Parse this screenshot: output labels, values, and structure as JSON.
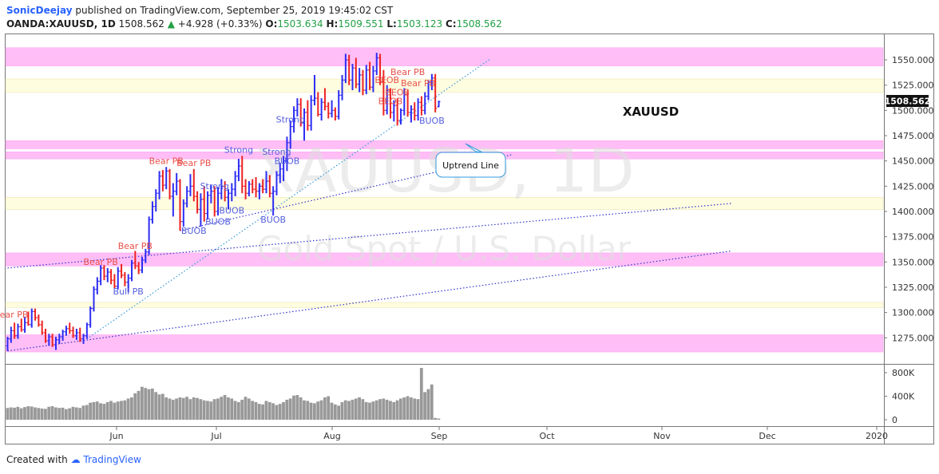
{
  "header": {
    "author": "SonicDeejay",
    "published": "published on TradingView.com, September 25, 2019 19:45:02 CST",
    "symbol": "OANDA:XAUUSD, 1D",
    "last": "1508.562",
    "change": "+4.928 (+0.33%)",
    "o_label": "O:",
    "o_value": "1503.634",
    "h_label": "H:",
    "h_value": "1509.551",
    "l_label": "L:",
    "l_value": "1503.123",
    "c_label": "C:",
    "c_value": "1508.562"
  },
  "footer": {
    "created_with": "Created with",
    "brand": "TradingView"
  },
  "watermark": {
    "line1": "XAUUSD, 1D",
    "line2": "Gold Spot / U.S. Dollar"
  },
  "symbol_label": "XAUUSD",
  "price_tag": "1508.562",
  "callout": "Uptrend Line",
  "colors": {
    "up": "#2d2df5",
    "down": "#ee2222",
    "zone_pink": "#ffb3f5",
    "zone_yellow": "#fffde0",
    "trend": "#3333cc",
    "trend_light": "#3399dd",
    "volume": "#999999"
  },
  "chart_data": {
    "type": "bar",
    "symbol": "OANDA:XAUUSD",
    "timeframe": "1D",
    "y_ticks": [
      "1550.000",
      "1525.000",
      "1500.000",
      "1475.000",
      "1450.000",
      "1425.000",
      "1400.000",
      "1375.000",
      "1350.000",
      "1325.000",
      "1300.000",
      "1275.000"
    ],
    "ylim": [
      1253,
      1570
    ],
    "x_ticks": [
      "Jun",
      "Jul",
      "Aug",
      "Sep",
      "Oct",
      "Nov",
      "Dec",
      "2020"
    ],
    "volume_ticks": [
      "800K",
      "400K",
      "0"
    ],
    "volume_max": 900000,
    "zones": [
      {
        "type": "resistance",
        "from": 1544,
        "to": 1562
      },
      {
        "type": "minor",
        "from": 1518,
        "to": 1531
      },
      {
        "type": "resistance",
        "from": 1462,
        "to": 1470
      },
      {
        "type": "resistance",
        "from": 1452,
        "to": 1459
      },
      {
        "type": "minor",
        "from": 1402,
        "to": 1414
      },
      {
        "type": "resistance",
        "from": 1346,
        "to": 1359
      },
      {
        "type": "minor",
        "from": 1305,
        "to": 1310
      },
      {
        "type": "resistance",
        "from": 1261,
        "to": 1278
      }
    ],
    "annotations": [
      {
        "text": "Bear PB",
        "kind": "bear",
        "bar": 1,
        "price": 1295
      },
      {
        "text": "Bear PB",
        "kind": "bear",
        "bar": 27,
        "price": 1347
      },
      {
        "text": "Bull PB",
        "kind": "bull",
        "bar": 35,
        "price": 1318
      },
      {
        "text": "Bear PB",
        "kind": "bear",
        "bar": 37,
        "price": 1363
      },
      {
        "text": "Bear PB",
        "kind": "bear",
        "bar": 46,
        "price": 1447
      },
      {
        "text": "Bear PB",
        "kind": "bear",
        "bar": 54,
        "price": 1445
      },
      {
        "text": "Strong",
        "kind": "bull",
        "bar": 60,
        "price": 1422
      },
      {
        "text": "BUOB",
        "kind": "bull",
        "bar": 54,
        "price": 1378
      },
      {
        "text": "BUOB",
        "kind": "bull",
        "bar": 61,
        "price": 1387
      },
      {
        "text": "BUOB",
        "kind": "bull",
        "bar": 65,
        "price": 1398
      },
      {
        "text": "Strong",
        "kind": "bull",
        "bar": 67,
        "price": 1458
      },
      {
        "text": "Strong",
        "kind": "bull",
        "bar": 78,
        "price": 1456
      },
      {
        "text": "BUOB",
        "kind": "bull",
        "bar": 81,
        "price": 1447
      },
      {
        "text": "BUOB",
        "kind": "bull",
        "bar": 77,
        "price": 1389
      },
      {
        "text": "Strong",
        "kind": "bull",
        "bar": 82,
        "price": 1488
      },
      {
        "text": "Bear PB",
        "kind": "bear",
        "bar": 116,
        "price": 1535
      },
      {
        "text": "BEOB",
        "kind": "bear",
        "bar": 110,
        "price": 1527
      },
      {
        "text": "Bear PB",
        "kind": "bear",
        "bar": 119,
        "price": 1524
      },
      {
        "text": "BEOB",
        "kind": "bear",
        "bar": 113,
        "price": 1515
      },
      {
        "text": "BEOB",
        "kind": "bear",
        "bar": 111,
        "price": 1506
      },
      {
        "text": "BUOB",
        "kind": "bull",
        "bar": 123,
        "price": 1487
      }
    ],
    "trend_lines": [
      {
        "name": "Uptrend Line",
        "style": "dotted-light",
        "from": [
          23,
          1274
        ],
        "to": [
          140,
          1551
        ]
      },
      {
        "name": "",
        "style": "dotted",
        "from": [
          50,
          1381
        ],
        "to": [
          146,
          1456
        ]
      },
      {
        "name": "",
        "style": "dotted",
        "from": [
          0,
          1344
        ],
        "to": [
          210,
          1408
        ]
      },
      {
        "name": "",
        "style": "dotted",
        "from": [
          0,
          1262
        ],
        "to": [
          210,
          1361
        ]
      }
    ],
    "bars": [
      [
        1267,
        1276,
        1262,
        1274
      ],
      [
        1274,
        1286,
        1270,
        1282
      ],
      [
        1282,
        1290,
        1274,
        1277
      ],
      [
        1277,
        1289,
        1274,
        1286
      ],
      [
        1286,
        1294,
        1281,
        1283
      ],
      [
        1283,
        1296,
        1280,
        1290
      ],
      [
        1290,
        1301,
        1287,
        1288
      ],
      [
        1288,
        1304,
        1285,
        1301
      ],
      [
        1301,
        1304,
        1292,
        1295
      ],
      [
        1295,
        1298,
        1286,
        1288
      ],
      [
        1288,
        1292,
        1278,
        1280
      ],
      [
        1280,
        1284,
        1270,
        1272
      ],
      [
        1272,
        1279,
        1267,
        1276
      ],
      [
        1276,
        1279,
        1266,
        1268
      ],
      [
        1268,
        1276,
        1263,
        1273
      ],
      [
        1273,
        1279,
        1269,
        1276
      ],
      [
        1276,
        1283,
        1272,
        1281
      ],
      [
        1281,
        1287,
        1277,
        1284
      ],
      [
        1284,
        1290,
        1279,
        1282
      ],
      [
        1282,
        1286,
        1275,
        1277
      ],
      [
        1277,
        1284,
        1273,
        1280
      ],
      [
        1280,
        1285,
        1271,
        1274
      ],
      [
        1274,
        1279,
        1269,
        1277
      ],
      [
        1277,
        1290,
        1274,
        1288
      ],
      [
        1288,
        1306,
        1285,
        1304
      ],
      [
        1304,
        1326,
        1301,
        1323
      ],
      [
        1323,
        1335,
        1318,
        1331
      ],
      [
        1331,
        1347,
        1327,
        1344
      ],
      [
        1344,
        1347,
        1332,
        1336
      ],
      [
        1336,
        1344,
        1330,
        1340
      ],
      [
        1340,
        1343,
        1328,
        1332
      ],
      [
        1332,
        1338,
        1324,
        1326
      ],
      [
        1326,
        1345,
        1323,
        1341
      ],
      [
        1341,
        1348,
        1334,
        1337
      ],
      [
        1337,
        1340,
        1326,
        1330
      ],
      [
        1330,
        1338,
        1320,
        1334
      ],
      [
        1334,
        1352,
        1331,
        1349
      ],
      [
        1349,
        1361,
        1343,
        1346
      ],
      [
        1346,
        1350,
        1338,
        1342
      ],
      [
        1342,
        1355,
        1339,
        1352
      ],
      [
        1352,
        1363,
        1349,
        1360
      ],
      [
        1360,
        1395,
        1357,
        1392
      ],
      [
        1392,
        1410,
        1388,
        1405
      ],
      [
        1405,
        1422,
        1400,
        1418
      ],
      [
        1418,
        1440,
        1412,
        1435
      ],
      [
        1435,
        1441,
        1420,
        1426
      ],
      [
        1426,
        1444,
        1422,
        1440
      ],
      [
        1440,
        1442,
        1412,
        1415
      ],
      [
        1415,
        1428,
        1395,
        1420
      ],
      [
        1420,
        1438,
        1416,
        1430
      ],
      [
        1430,
        1432,
        1381,
        1390
      ],
      [
        1390,
        1412,
        1385,
        1408
      ],
      [
        1408,
        1425,
        1404,
        1420
      ],
      [
        1420,
        1437,
        1415,
        1425
      ],
      [
        1425,
        1442,
        1410,
        1415
      ],
      [
        1415,
        1420,
        1398,
        1402
      ],
      [
        1402,
        1418,
        1385,
        1412
      ],
      [
        1412,
        1425,
        1390,
        1398
      ],
      [
        1398,
        1420,
        1392,
        1416
      ],
      [
        1416,
        1426,
        1408,
        1420
      ],
      [
        1420,
        1425,
        1395,
        1400
      ],
      [
        1400,
        1424,
        1396,
        1418
      ],
      [
        1418,
        1432,
        1412,
        1425
      ],
      [
        1425,
        1430,
        1410,
        1414
      ],
      [
        1414,
        1422,
        1402,
        1418
      ],
      [
        1418,
        1428,
        1410,
        1422
      ],
      [
        1422,
        1440,
        1415,
        1435
      ],
      [
        1435,
        1452,
        1430,
        1445
      ],
      [
        1445,
        1455,
        1418,
        1425
      ],
      [
        1425,
        1432,
        1412,
        1418
      ],
      [
        1418,
        1430,
        1415,
        1427
      ],
      [
        1427,
        1432,
        1418,
        1422
      ],
      [
        1422,
        1434,
        1414,
        1420
      ],
      [
        1420,
        1428,
        1412,
        1425
      ],
      [
        1425,
        1432,
        1418,
        1422
      ],
      [
        1422,
        1440,
        1418,
        1430
      ],
      [
        1430,
        1436,
        1414,
        1418
      ],
      [
        1418,
        1425,
        1396,
        1420
      ],
      [
        1420,
        1440,
        1416,
        1436
      ],
      [
        1436,
        1448,
        1428,
        1442
      ],
      [
        1442,
        1455,
        1430,
        1450
      ],
      [
        1450,
        1474,
        1440,
        1468
      ],
      [
        1468,
        1490,
        1462,
        1484
      ],
      [
        1484,
        1504,
        1478,
        1500
      ],
      [
        1500,
        1512,
        1494,
        1506
      ],
      [
        1506,
        1512,
        1484,
        1488
      ],
      [
        1488,
        1502,
        1470,
        1498
      ],
      [
        1498,
        1510,
        1480,
        1485
      ],
      [
        1485,
        1515,
        1480,
        1510
      ],
      [
        1510,
        1535,
        1505,
        1512
      ],
      [
        1512,
        1518,
        1494,
        1496
      ],
      [
        1496,
        1512,
        1490,
        1508
      ],
      [
        1508,
        1522,
        1500,
        1504
      ],
      [
        1504,
        1508,
        1492,
        1497
      ],
      [
        1497,
        1510,
        1493,
        1500
      ],
      [
        1500,
        1503,
        1490,
        1494
      ],
      [
        1494,
        1520,
        1491,
        1515
      ],
      [
        1515,
        1535,
        1510,
        1530
      ],
      [
        1530,
        1556,
        1527,
        1550
      ],
      [
        1550,
        1555,
        1525,
        1530
      ],
      [
        1530,
        1546,
        1520,
        1542
      ],
      [
        1542,
        1552,
        1522,
        1526
      ],
      [
        1526,
        1542,
        1518,
        1535
      ],
      [
        1535,
        1540,
        1515,
        1520
      ],
      [
        1520,
        1545,
        1516,
        1540
      ],
      [
        1540,
        1548,
        1520,
        1523
      ],
      [
        1523,
        1544,
        1518,
        1539
      ],
      [
        1539,
        1557,
        1535,
        1552
      ],
      [
        1552,
        1556,
        1525,
        1528
      ],
      [
        1528,
        1540,
        1495,
        1500
      ],
      [
        1500,
        1525,
        1496,
        1520
      ],
      [
        1520,
        1522,
        1492,
        1498
      ],
      [
        1498,
        1510,
        1489,
        1505
      ],
      [
        1505,
        1512,
        1485,
        1490
      ],
      [
        1490,
        1502,
        1486,
        1500
      ],
      [
        1500,
        1522,
        1495,
        1516
      ],
      [
        1516,
        1520,
        1494,
        1498
      ],
      [
        1498,
        1505,
        1488,
        1501
      ],
      [
        1501,
        1508,
        1490,
        1495
      ],
      [
        1495,
        1512,
        1490,
        1508
      ],
      [
        1508,
        1514,
        1495,
        1500
      ],
      [
        1500,
        1518,
        1496,
        1514
      ],
      [
        1514,
        1530,
        1510,
        1528
      ],
      [
        1528,
        1536,
        1520,
        1532
      ],
      [
        1532,
        1536,
        1498,
        1502
      ],
      [
        1503.6,
        1509.6,
        1503.1,
        1508.6
      ]
    ],
    "volume": [
      200,
      210,
      205,
      220,
      195,
      215,
      230,
      225,
      210,
      200,
      190,
      185,
      220,
      230,
      210,
      200,
      205,
      180,
      195,
      220,
      210,
      200,
      240,
      250,
      290,
      300,
      310,
      280,
      270,
      300,
      320,
      290,
      310,
      320,
      330,
      360,
      380,
      450,
      490,
      560,
      540,
      520,
      530,
      470,
      430,
      440,
      380,
      360,
      340,
      360,
      380,
      370,
      390,
      350,
      380,
      370,
      350,
      330,
      320,
      310,
      350,
      360,
      390,
      420,
      380,
      360,
      320,
      300,
      340,
      390,
      360,
      320,
      300,
      270,
      260,
      320,
      300,
      280,
      250,
      270,
      300,
      340,
      360,
      410,
      420,
      380,
      330,
      320,
      290,
      280,
      310,
      330,
      380,
      400,
      290,
      260,
      240,
      300,
      330,
      320,
      340,
      360,
      380,
      350,
      300,
      290,
      310,
      330,
      350,
      360,
      340,
      320,
      300,
      330,
      360,
      380,
      400,
      380,
      360,
      350,
      880,
      470,
      520,
      600,
      30,
      20
    ]
  }
}
